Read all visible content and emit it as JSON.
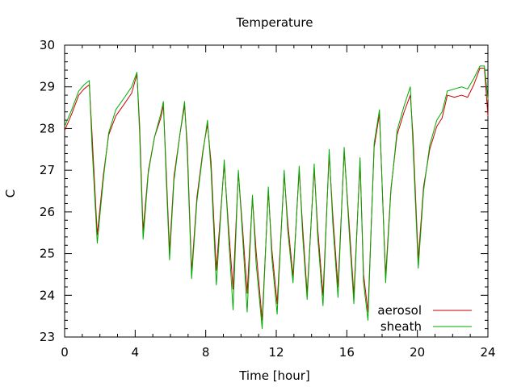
{
  "chart_data": {
    "type": "line",
    "title": "Temperature",
    "xlabel": "Time [hour]",
    "ylabel": "C",
    "xlim": [
      0,
      24
    ],
    "ylim": [
      23,
      30
    ],
    "xticks": [
      0,
      4,
      8,
      12,
      16,
      20,
      24
    ],
    "yticks": [
      23,
      24,
      25,
      26,
      27,
      28,
      29,
      30
    ],
    "grid": false,
    "legend_position": "bottom-right",
    "series": [
      {
        "name": "aerosol",
        "color": "#cc0000",
        "points": [
          [
            0,
            27.95
          ],
          [
            0.4,
            28.35
          ],
          [
            0.8,
            28.8
          ],
          [
            1.1,
            28.95
          ],
          [
            1.4,
            29.05
          ],
          [
            1.55,
            27.9
          ],
          [
            1.85,
            25.45
          ],
          [
            2.2,
            26.9
          ],
          [
            2.5,
            27.85
          ],
          [
            2.9,
            28.3
          ],
          [
            3.4,
            28.6
          ],
          [
            3.8,
            28.85
          ],
          [
            4.1,
            29.3
          ],
          [
            4.25,
            28.1
          ],
          [
            4.45,
            25.55
          ],
          [
            4.75,
            27.0
          ],
          [
            5.1,
            27.8
          ],
          [
            5.45,
            28.25
          ],
          [
            5.6,
            28.55
          ],
          [
            5.75,
            27.1
          ],
          [
            5.95,
            25.05
          ],
          [
            6.2,
            26.85
          ],
          [
            6.55,
            27.9
          ],
          [
            6.8,
            28.55
          ],
          [
            6.95,
            27.65
          ],
          [
            7.2,
            24.55
          ],
          [
            7.5,
            26.35
          ],
          [
            7.85,
            27.5
          ],
          [
            8.1,
            28.1
          ],
          [
            8.3,
            27.2
          ],
          [
            8.6,
            24.6
          ],
          [
            9.05,
            27.15
          ],
          [
            9.3,
            25.6
          ],
          [
            9.55,
            24.15
          ],
          [
            9.85,
            26.95
          ],
          [
            10.1,
            25.55
          ],
          [
            10.35,
            24.05
          ],
          [
            10.65,
            26.35
          ],
          [
            10.85,
            25.1
          ],
          [
            11.2,
            23.4
          ],
          [
            11.55,
            26.5
          ],
          [
            11.75,
            25.1
          ],
          [
            12.05,
            23.8
          ],
          [
            12.45,
            26.9
          ],
          [
            12.65,
            25.75
          ],
          [
            12.95,
            24.45
          ],
          [
            13.3,
            27.0
          ],
          [
            13.5,
            25.6
          ],
          [
            13.75,
            24.05
          ],
          [
            14.15,
            27.05
          ],
          [
            14.35,
            25.6
          ],
          [
            14.65,
            24.0
          ],
          [
            15.0,
            27.4
          ],
          [
            15.2,
            25.95
          ],
          [
            15.5,
            24.2
          ],
          [
            15.85,
            27.45
          ],
          [
            16.15,
            25.6
          ],
          [
            16.4,
            24.0
          ],
          [
            16.75,
            27.2
          ],
          [
            16.95,
            24.5
          ],
          [
            17.2,
            23.6
          ],
          [
            17.55,
            27.55
          ],
          [
            17.85,
            28.35
          ],
          [
            18.2,
            24.45
          ],
          [
            18.5,
            26.55
          ],
          [
            18.85,
            27.85
          ],
          [
            19.25,
            28.4
          ],
          [
            19.6,
            28.8
          ],
          [
            19.75,
            27.85
          ],
          [
            20.05,
            24.85
          ],
          [
            20.35,
            26.6
          ],
          [
            20.7,
            27.5
          ],
          [
            21.1,
            28.05
          ],
          [
            21.4,
            28.25
          ],
          [
            21.7,
            28.8
          ],
          [
            22.1,
            28.75
          ],
          [
            22.5,
            28.8
          ],
          [
            22.85,
            28.75
          ],
          [
            23.2,
            29.05
          ],
          [
            23.55,
            29.45
          ],
          [
            23.8,
            29.45
          ],
          [
            24,
            28.3
          ]
        ]
      },
      {
        "name": "sheath",
        "color": "#00aa00",
        "points": [
          [
            0,
            28.05
          ],
          [
            0.4,
            28.45
          ],
          [
            0.8,
            28.9
          ],
          [
            1.1,
            29.05
          ],
          [
            1.4,
            29.15
          ],
          [
            1.55,
            27.6
          ],
          [
            1.85,
            25.25
          ],
          [
            2.2,
            26.8
          ],
          [
            2.5,
            27.9
          ],
          [
            2.9,
            28.45
          ],
          [
            3.4,
            28.75
          ],
          [
            3.8,
            29.0
          ],
          [
            4.1,
            29.35
          ],
          [
            4.25,
            27.9
          ],
          [
            4.45,
            25.35
          ],
          [
            4.75,
            26.95
          ],
          [
            5.1,
            27.8
          ],
          [
            5.45,
            28.35
          ],
          [
            5.6,
            28.65
          ],
          [
            5.75,
            26.9
          ],
          [
            5.95,
            24.85
          ],
          [
            6.2,
            26.75
          ],
          [
            6.55,
            27.9
          ],
          [
            6.8,
            28.65
          ],
          [
            6.95,
            27.45
          ],
          [
            7.2,
            24.4
          ],
          [
            7.5,
            26.25
          ],
          [
            7.85,
            27.45
          ],
          [
            8.1,
            28.2
          ],
          [
            8.3,
            27.0
          ],
          [
            8.6,
            24.25
          ],
          [
            9.05,
            27.25
          ],
          [
            9.3,
            25.4
          ],
          [
            9.55,
            23.65
          ],
          [
            9.85,
            27.0
          ],
          [
            10.1,
            25.35
          ],
          [
            10.35,
            23.6
          ],
          [
            10.65,
            26.4
          ],
          [
            10.85,
            24.8
          ],
          [
            11.2,
            23.2
          ],
          [
            11.55,
            26.6
          ],
          [
            11.75,
            24.9
          ],
          [
            12.05,
            23.55
          ],
          [
            12.45,
            27.0
          ],
          [
            12.65,
            25.55
          ],
          [
            12.95,
            24.3
          ],
          [
            13.3,
            27.1
          ],
          [
            13.5,
            25.4
          ],
          [
            13.75,
            23.9
          ],
          [
            14.15,
            27.15
          ],
          [
            14.35,
            25.4
          ],
          [
            14.65,
            23.75
          ],
          [
            15.0,
            27.5
          ],
          [
            15.2,
            25.75
          ],
          [
            15.5,
            23.95
          ],
          [
            15.85,
            27.55
          ],
          [
            16.15,
            25.4
          ],
          [
            16.4,
            23.8
          ],
          [
            16.75,
            27.3
          ],
          [
            16.95,
            24.3
          ],
          [
            17.2,
            23.4
          ],
          [
            17.55,
            27.65
          ],
          [
            17.85,
            28.45
          ],
          [
            18.2,
            24.3
          ],
          [
            18.5,
            26.5
          ],
          [
            18.85,
            27.95
          ],
          [
            19.25,
            28.55
          ],
          [
            19.6,
            29.0
          ],
          [
            19.75,
            27.6
          ],
          [
            20.05,
            24.65
          ],
          [
            20.35,
            26.5
          ],
          [
            20.7,
            27.6
          ],
          [
            21.1,
            28.2
          ],
          [
            21.4,
            28.4
          ],
          [
            21.7,
            28.9
          ],
          [
            22.1,
            28.95
          ],
          [
            22.5,
            29.0
          ],
          [
            22.85,
            28.95
          ],
          [
            23.2,
            29.2
          ],
          [
            23.55,
            29.5
          ],
          [
            23.8,
            29.5
          ],
          [
            24,
            28.7
          ]
        ]
      }
    ]
  }
}
